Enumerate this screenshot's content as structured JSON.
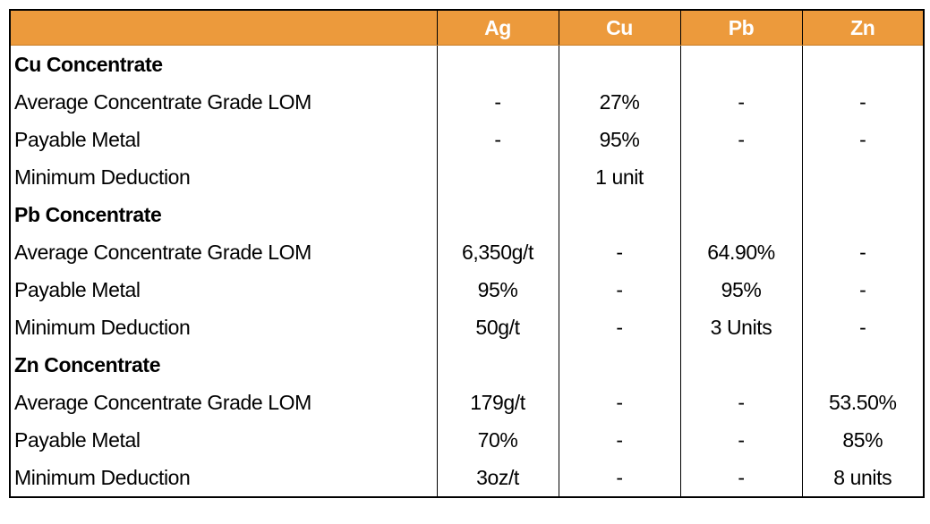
{
  "header": {
    "columns": [
      "Ag",
      "Cu",
      "Pb",
      "Zn"
    ]
  },
  "sections": [
    {
      "title": "Cu Concentrate",
      "rows": [
        {
          "label": "Average Concentrate Grade LOM",
          "values": [
            "-",
            "27%",
            "-",
            "-"
          ]
        },
        {
          "label": "Payable Metal",
          "values": [
            "-",
            "95%",
            "-",
            "-"
          ]
        },
        {
          "label": "Minimum Deduction",
          "values": [
            null,
            "1 unit",
            null,
            null
          ]
        }
      ]
    },
    {
      "title": "Pb Concentrate",
      "rows": [
        {
          "label": "Average Concentrate Grade LOM",
          "values": [
            "6,350g/t",
            "-",
            "64.90%",
            "-"
          ]
        },
        {
          "label": "Payable Metal",
          "values": [
            "95%",
            "-",
            "95%",
            "-"
          ]
        },
        {
          "label": "Minimum Deduction",
          "values": [
            "50g/t",
            "-",
            "3 Units",
            "-"
          ]
        }
      ]
    },
    {
      "title": "Zn Concentrate",
      "rows": [
        {
          "label": "Average Concentrate Grade LOM",
          "values": [
            "179g/t",
            "-",
            "-",
            "53.50%"
          ]
        },
        {
          "label": "Payable Metal",
          "values": [
            "70%",
            "-",
            "-",
            "85%"
          ]
        },
        {
          "label": "Minimum Deduction",
          "values": [
            "3oz/t",
            "-",
            "-",
            "8 units"
          ]
        }
      ]
    }
  ]
}
